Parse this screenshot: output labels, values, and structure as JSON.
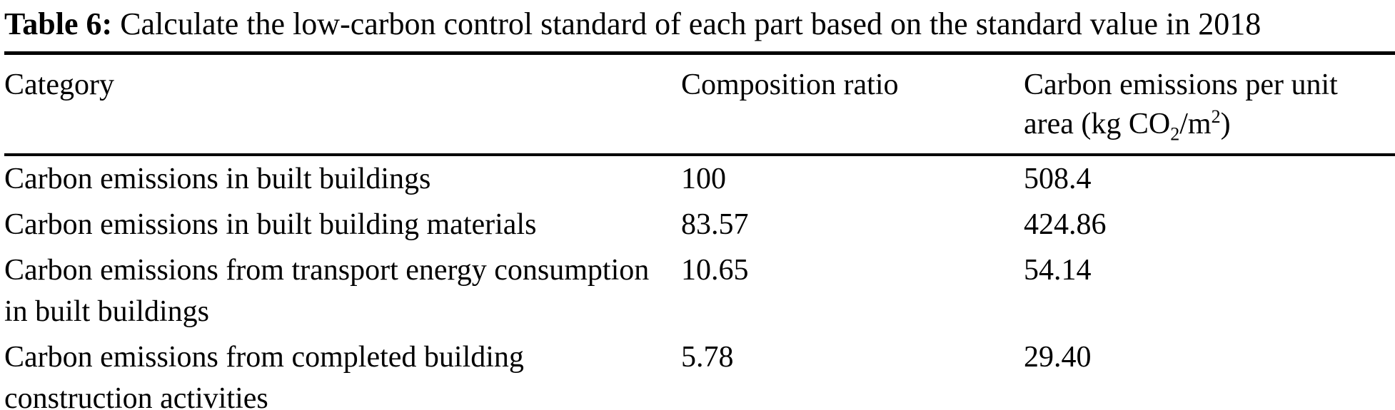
{
  "caption": {
    "label": "Table 6:",
    "text": "Calculate the low-carbon control standard of each part based on the standard value in 2018"
  },
  "columns": {
    "category": "Category",
    "composition_ratio": "Composition ratio",
    "carbon_unit": {
      "pre": "Carbon emissions per unit area (kg CO",
      "sub": "2",
      "mid": "/m",
      "sup": "2",
      "post": ")"
    }
  },
  "rows": [
    {
      "category": "Carbon emissions in built buildings",
      "composition_ratio": "100",
      "carbon_per_unit_area": "508.4"
    },
    {
      "category": "Carbon emissions in built building materials",
      "composition_ratio": "83.57",
      "carbon_per_unit_area": "424.86"
    },
    {
      "category": "Carbon emissions from transport energy consumption in built buildings",
      "composition_ratio": "10.65",
      "carbon_per_unit_area": "54.14"
    },
    {
      "category": "Carbon emissions from completed building construction activities",
      "composition_ratio": "5.78",
      "carbon_per_unit_area": "29.40"
    }
  ]
}
